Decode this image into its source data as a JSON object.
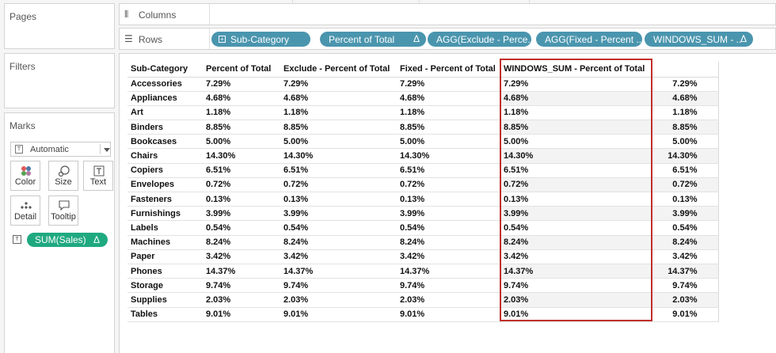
{
  "cards": {
    "pages_title": "Pages",
    "filters_title": "Filters",
    "marks_title": "Marks"
  },
  "marks": {
    "mark_type": "Automatic",
    "buttons": {
      "color": "Color",
      "size": "Size",
      "text": "Text",
      "detail": "Detail",
      "tooltip": "Tooltip"
    },
    "pill": {
      "label": "SUM(Sales)",
      "delta": "Δ",
      "color": "#1fa980"
    }
  },
  "shelves": {
    "columns_label": "Columns",
    "rows_label": "Rows",
    "pill_color": "#4a95ae",
    "row_pills": [
      {
        "label": "Sub-Category",
        "icon": "plus-square-icon"
      },
      {
        "label": "Percent of Total",
        "delta": "Δ"
      },
      {
        "label": "AGG(Exclude - Perce.."
      },
      {
        "label": "AGG(Fixed - Percent .."
      },
      {
        "label": "WINDOWS_SUM - ..",
        "delta": "Δ"
      }
    ]
  },
  "table": {
    "headers": [
      "Sub-Category",
      "Percent of Total",
      "Exclude - Percent of Total",
      "Fixed - Percent of Total",
      "WINDOWS_SUM - Percent of Total",
      ""
    ],
    "rows": [
      [
        "Accessories",
        "7.29%",
        "7.29%",
        "7.29%",
        "7.29%",
        "7.29%"
      ],
      [
        "Appliances",
        "4.68%",
        "4.68%",
        "4.68%",
        "4.68%",
        "4.68%"
      ],
      [
        "Art",
        "1.18%",
        "1.18%",
        "1.18%",
        "1.18%",
        "1.18%"
      ],
      [
        "Binders",
        "8.85%",
        "8.85%",
        "8.85%",
        "8.85%",
        "8.85%"
      ],
      [
        "Bookcases",
        "5.00%",
        "5.00%",
        "5.00%",
        "5.00%",
        "5.00%"
      ],
      [
        "Chairs",
        "14.30%",
        "14.30%",
        "14.30%",
        "14.30%",
        "14.30%"
      ],
      [
        "Copiers",
        "6.51%",
        "6.51%",
        "6.51%",
        "6.51%",
        "6.51%"
      ],
      [
        "Envelopes",
        "0.72%",
        "0.72%",
        "0.72%",
        "0.72%",
        "0.72%"
      ],
      [
        "Fasteners",
        "0.13%",
        "0.13%",
        "0.13%",
        "0.13%",
        "0.13%"
      ],
      [
        "Furnishings",
        "3.99%",
        "3.99%",
        "3.99%",
        "3.99%",
        "3.99%"
      ],
      [
        "Labels",
        "0.54%",
        "0.54%",
        "0.54%",
        "0.54%",
        "0.54%"
      ],
      [
        "Machines",
        "8.24%",
        "8.24%",
        "8.24%",
        "8.24%",
        "8.24%"
      ],
      [
        "Paper",
        "3.42%",
        "3.42%",
        "3.42%",
        "3.42%",
        "3.42%"
      ],
      [
        "Phones",
        "14.37%",
        "14.37%",
        "14.37%",
        "14.37%",
        "14.37%"
      ],
      [
        "Storage",
        "9.74%",
        "9.74%",
        "9.74%",
        "9.74%",
        "9.74%"
      ],
      [
        "Supplies",
        "2.03%",
        "2.03%",
        "2.03%",
        "2.03%",
        "2.03%"
      ],
      [
        "Tables",
        "9.01%",
        "9.01%",
        "9.01%",
        "9.01%",
        "9.01%"
      ]
    ],
    "highlight_color": "#c0302b"
  }
}
